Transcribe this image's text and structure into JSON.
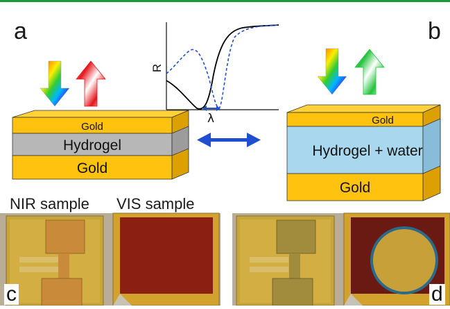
{
  "panel_letters": {
    "a": "a",
    "b": "b",
    "c": "c",
    "d": "d"
  },
  "graph": {
    "y_axis_label": "R",
    "x_axis_label": "λ"
  },
  "stack_a": {
    "top_layer": "Gold",
    "middle_layer": "Hydrogel",
    "bottom_layer": "Gold"
  },
  "stack_b": {
    "top_layer": "Gold",
    "middle_layer": "Hydrogel + water",
    "bottom_layer": "Gold"
  },
  "photo_labels": {
    "nir": "NIR sample",
    "vis": "VIS sample"
  },
  "colors": {
    "gold": "#ffc20e",
    "hydrogel_dry": "#b7b7b7",
    "hydrogel_wet": "#a9d8ee",
    "blue_arrow": "#1f4fd0",
    "top_rule": "#1d9a3c",
    "curve_solid": "#000000",
    "curve_dashed": "#1f4fd0"
  },
  "icons": [
    "rainbow-down-arrow-icon",
    "red-up-arrow-icon",
    "green-up-arrow-icon",
    "double-headed-arrow-icon"
  ]
}
